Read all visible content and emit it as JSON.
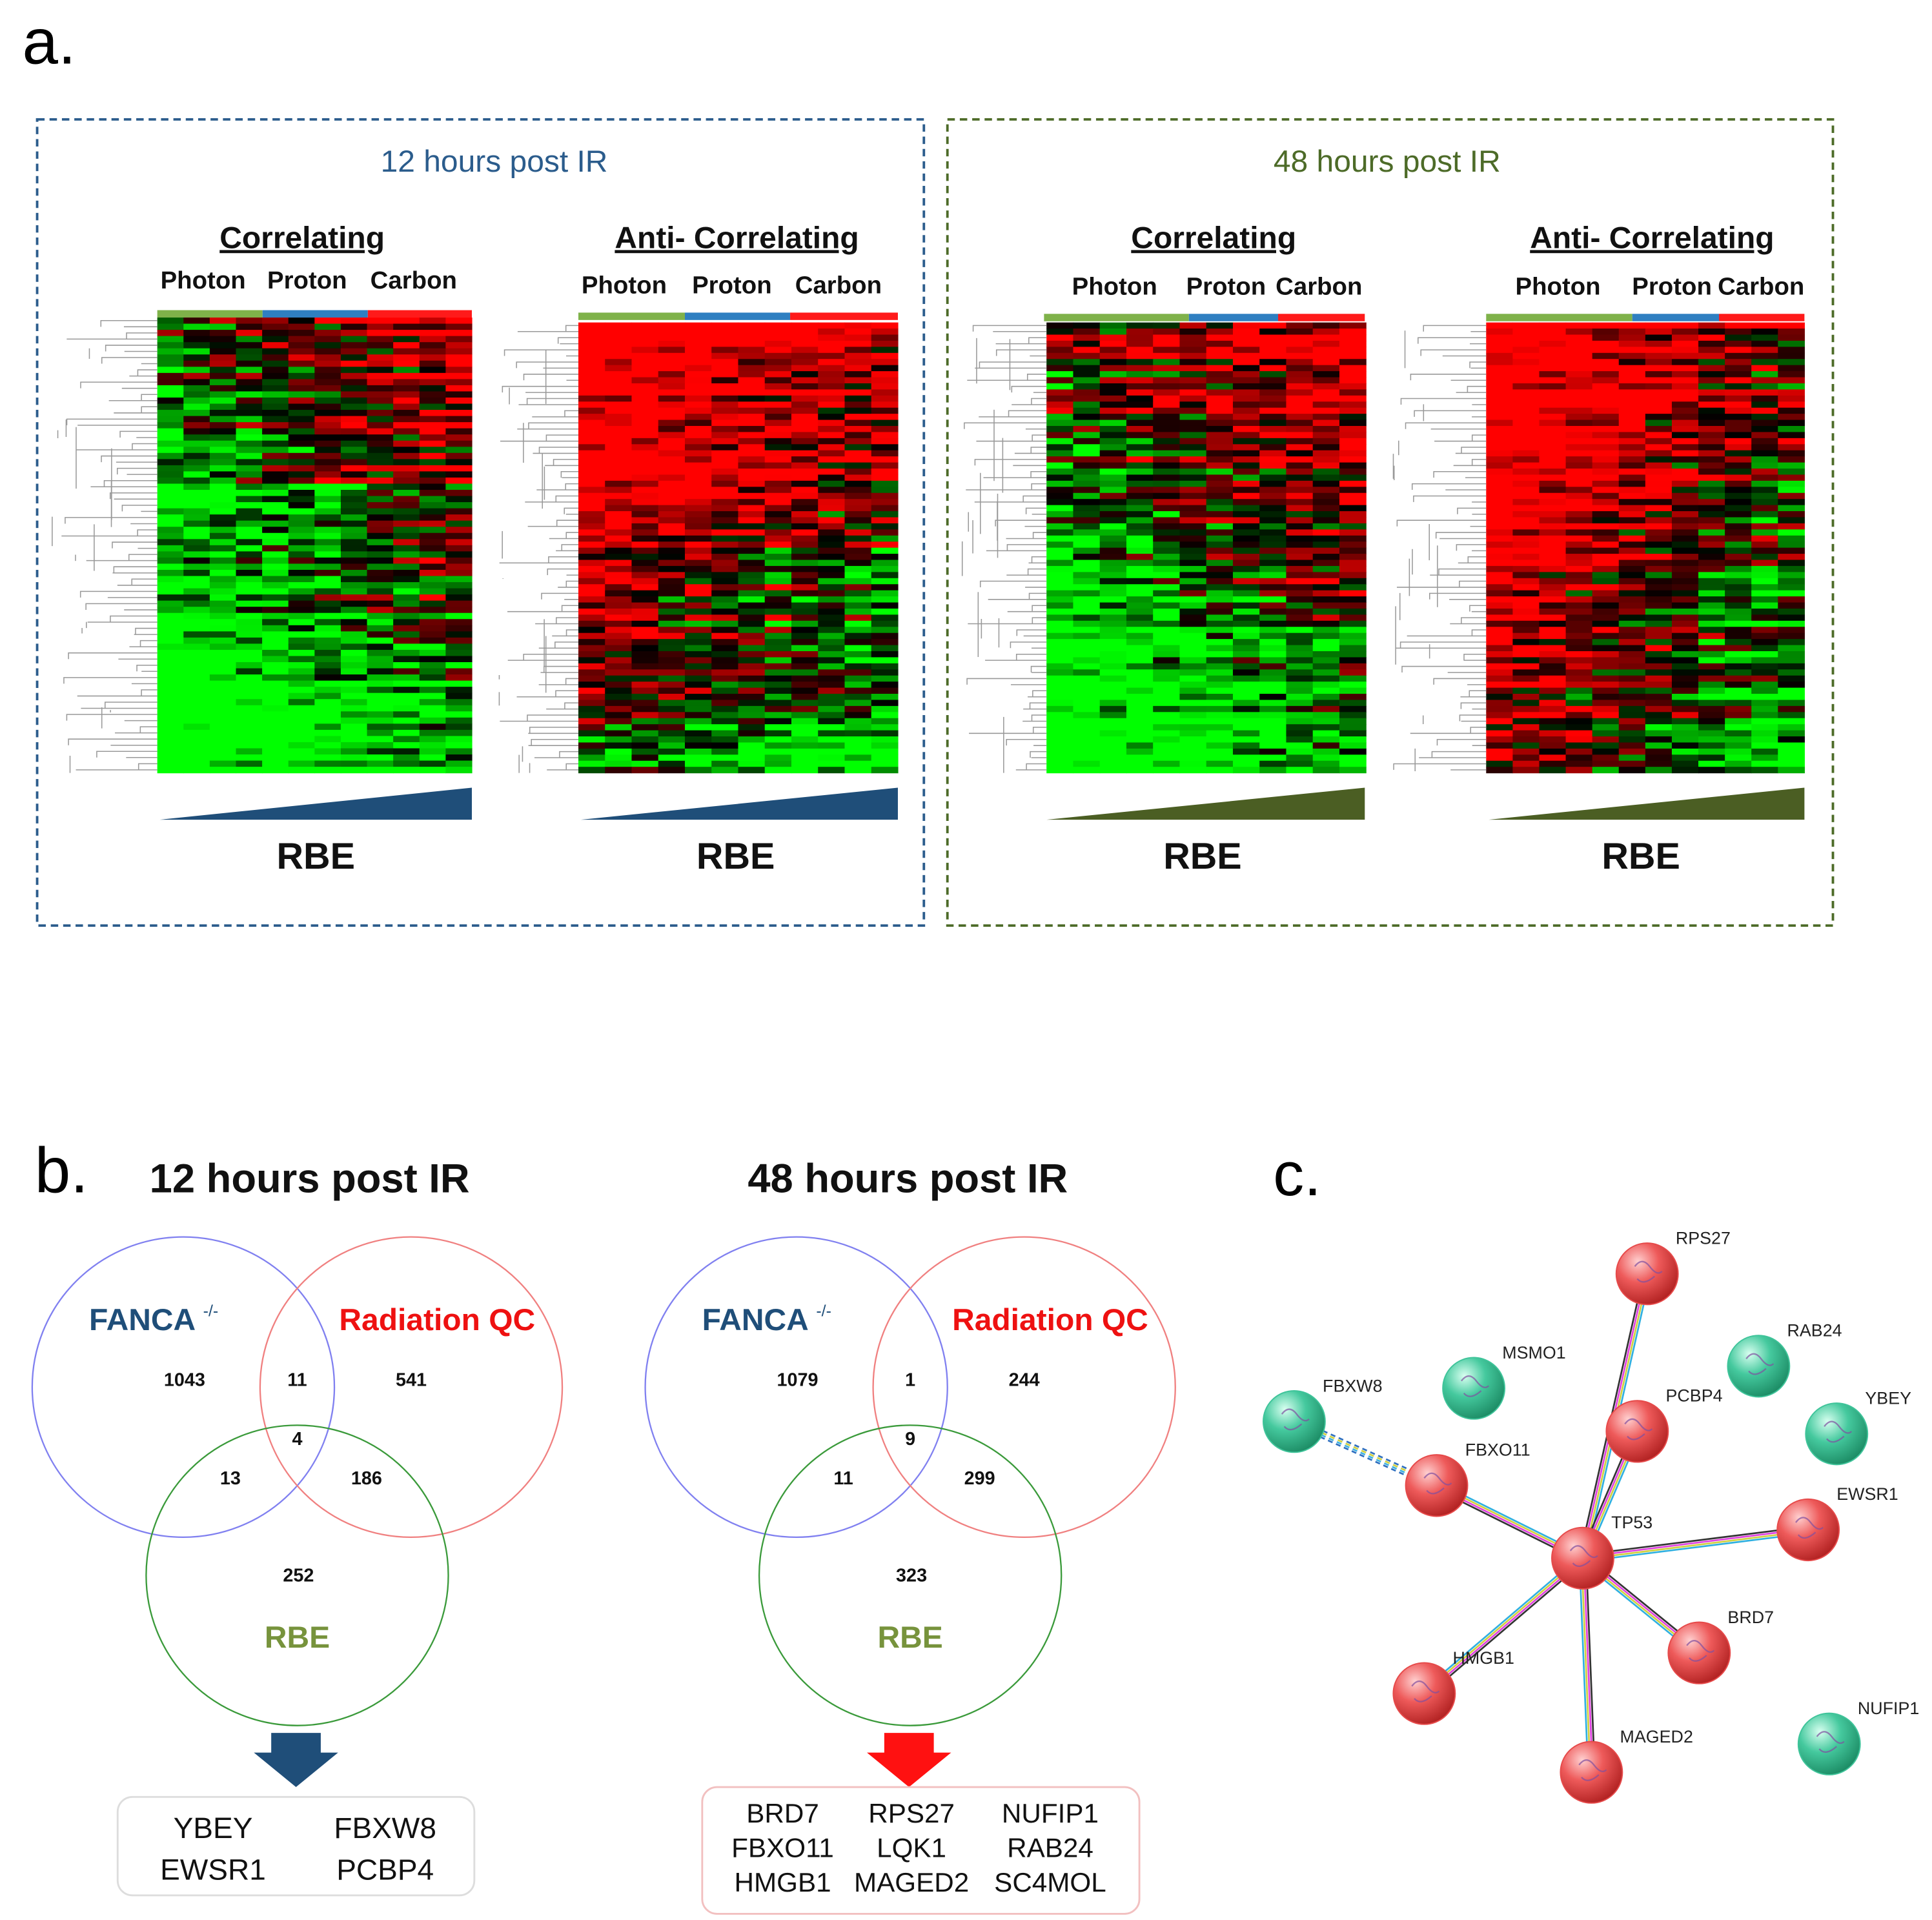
{
  "panel_a": {
    "label": "a.",
    "groups": [
      {
        "title": "12 hours post IR",
        "heatmaps": [
          {
            "title": "Correlating",
            "columns": [
              "Photon",
              "Proton",
              "Carbon"
            ],
            "axis_label": "RBE"
          },
          {
            "title": "Anti- Correlating",
            "columns": [
              "Photon",
              "Proton",
              "Carbon"
            ],
            "axis_label": "RBE"
          }
        ]
      },
      {
        "title": "48 hours post IR",
        "heatmaps": [
          {
            "title": "Correlating",
            "columns": [
              "Photon",
              "Proton",
              "Carbon"
            ],
            "axis_label": "RBE"
          },
          {
            "title": "Anti- Correlating",
            "columns": [
              "Photon",
              "Proton",
              "Carbon"
            ],
            "axis_label": "RBE"
          }
        ]
      }
    ]
  },
  "panel_b": {
    "label": "b.",
    "venns": [
      {
        "title": "12 hours post IR",
        "sets": [
          {
            "name": "FANCA",
            "superscript": "-/-"
          },
          {
            "name": "Radiation QC"
          },
          {
            "name": "RBE"
          }
        ],
        "counts": {
          "fanca_only": 1043,
          "fanca_radiation": 11,
          "radiation_only": 541,
          "all_three": 4,
          "fanca_rbe": 13,
          "radiation_rbe": 186,
          "rbe_only": 252
        },
        "genes": [
          "YBEY",
          "FBXW8",
          "EWSR1",
          "PCBP4"
        ]
      },
      {
        "title": "48 hours post IR",
        "sets": [
          {
            "name": "FANCA",
            "superscript": "-/-"
          },
          {
            "name": "Radiation QC"
          },
          {
            "name": "RBE"
          }
        ],
        "counts": {
          "fanca_only": 1079,
          "fanca_radiation": 1,
          "radiation_only": 244,
          "all_three": 9,
          "fanca_rbe": 11,
          "radiation_rbe": 299,
          "rbe_only": 323
        },
        "genes": [
          "BRD7",
          "RPS27",
          "NUFIP1",
          "FBXO11",
          "LQK1",
          "RAB24",
          "HMGB1",
          "MAGED2",
          "SC4MOL"
        ]
      }
    ]
  },
  "panel_c": {
    "label": "c.",
    "nodes": [
      {
        "label": "RPS27",
        "color": "#e64a4a"
      },
      {
        "label": "MSMO1",
        "color": "#3fc49a"
      },
      {
        "label": "RAB24",
        "color": "#3fc49a"
      },
      {
        "label": "FBXW8",
        "color": "#3fc49a"
      },
      {
        "label": "PCBP4",
        "color": "#e64a4a"
      },
      {
        "label": "YBEY",
        "color": "#3fc49a"
      },
      {
        "label": "FBXO11",
        "color": "#e64a4a"
      },
      {
        "label": "TP53",
        "color": "#e64a4a"
      },
      {
        "label": "EWSR1",
        "color": "#e64a4a"
      },
      {
        "label": "BRD7",
        "color": "#e64a4a"
      },
      {
        "label": "HMGB1",
        "color": "#e64a4a"
      },
      {
        "label": "MAGED2",
        "color": "#e64a4a"
      },
      {
        "label": "NUFIP1",
        "color": "#3fc49a"
      }
    ],
    "edges": [
      [
        "TP53",
        "RPS27"
      ],
      [
        "TP53",
        "PCBP4"
      ],
      [
        "TP53",
        "FBXO11"
      ],
      [
        "TP53",
        "EWSR1"
      ],
      [
        "TP53",
        "BRD7"
      ],
      [
        "TP53",
        "HMGB1"
      ],
      [
        "TP53",
        "MAGED2"
      ],
      [
        "FBXO11",
        "FBXW8"
      ]
    ]
  }
}
